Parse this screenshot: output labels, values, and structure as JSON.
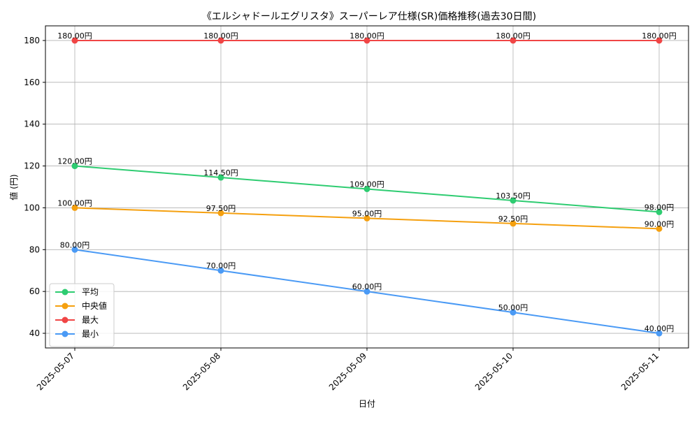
{
  "chart_data": {
    "type": "line",
    "title": "《エルシャドールエグリスタ》スーパーレア仕様(SR)価格推移(過去30日間)",
    "xlabel": "日付",
    "ylabel": "値 (円)",
    "categories": [
      "2025-05-07",
      "2025-05-08",
      "2025-05-09",
      "2025-05-10",
      "2025-05-11"
    ],
    "ylim": [
      33,
      187
    ],
    "yticks": [
      40,
      60,
      80,
      100,
      120,
      140,
      160,
      180
    ],
    "grid": true,
    "legend_position": "lower-left",
    "series": [
      {
        "name": "平均",
        "color": "#2ecc71",
        "values": [
          120.0,
          114.5,
          109.0,
          103.5,
          98.0
        ],
        "labels": [
          "120.00円",
          "114.50円",
          "109.00円",
          "103.50円",
          "98.00円"
        ]
      },
      {
        "name": "中央値",
        "color": "#f5a00f",
        "values": [
          100.0,
          97.5,
          95.0,
          92.5,
          90.0
        ],
        "labels": [
          "100.00円",
          "97.50円",
          "95.00円",
          "92.50円",
          "90.00円"
        ]
      },
      {
        "name": "最大",
        "color": "#f04545",
        "values": [
          180.0,
          180.0,
          180.0,
          180.0,
          180.0
        ],
        "labels": [
          "180.00円",
          "180.00円",
          "180.00円",
          "180.00円",
          "180.00円"
        ]
      },
      {
        "name": "最小",
        "color": "#4a9af5",
        "values": [
          80.0,
          70.0,
          60.0,
          50.0,
          40.0
        ],
        "labels": [
          "80.00円",
          "70.00円",
          "60.00円",
          "50.00円",
          "40.00円"
        ]
      }
    ]
  }
}
